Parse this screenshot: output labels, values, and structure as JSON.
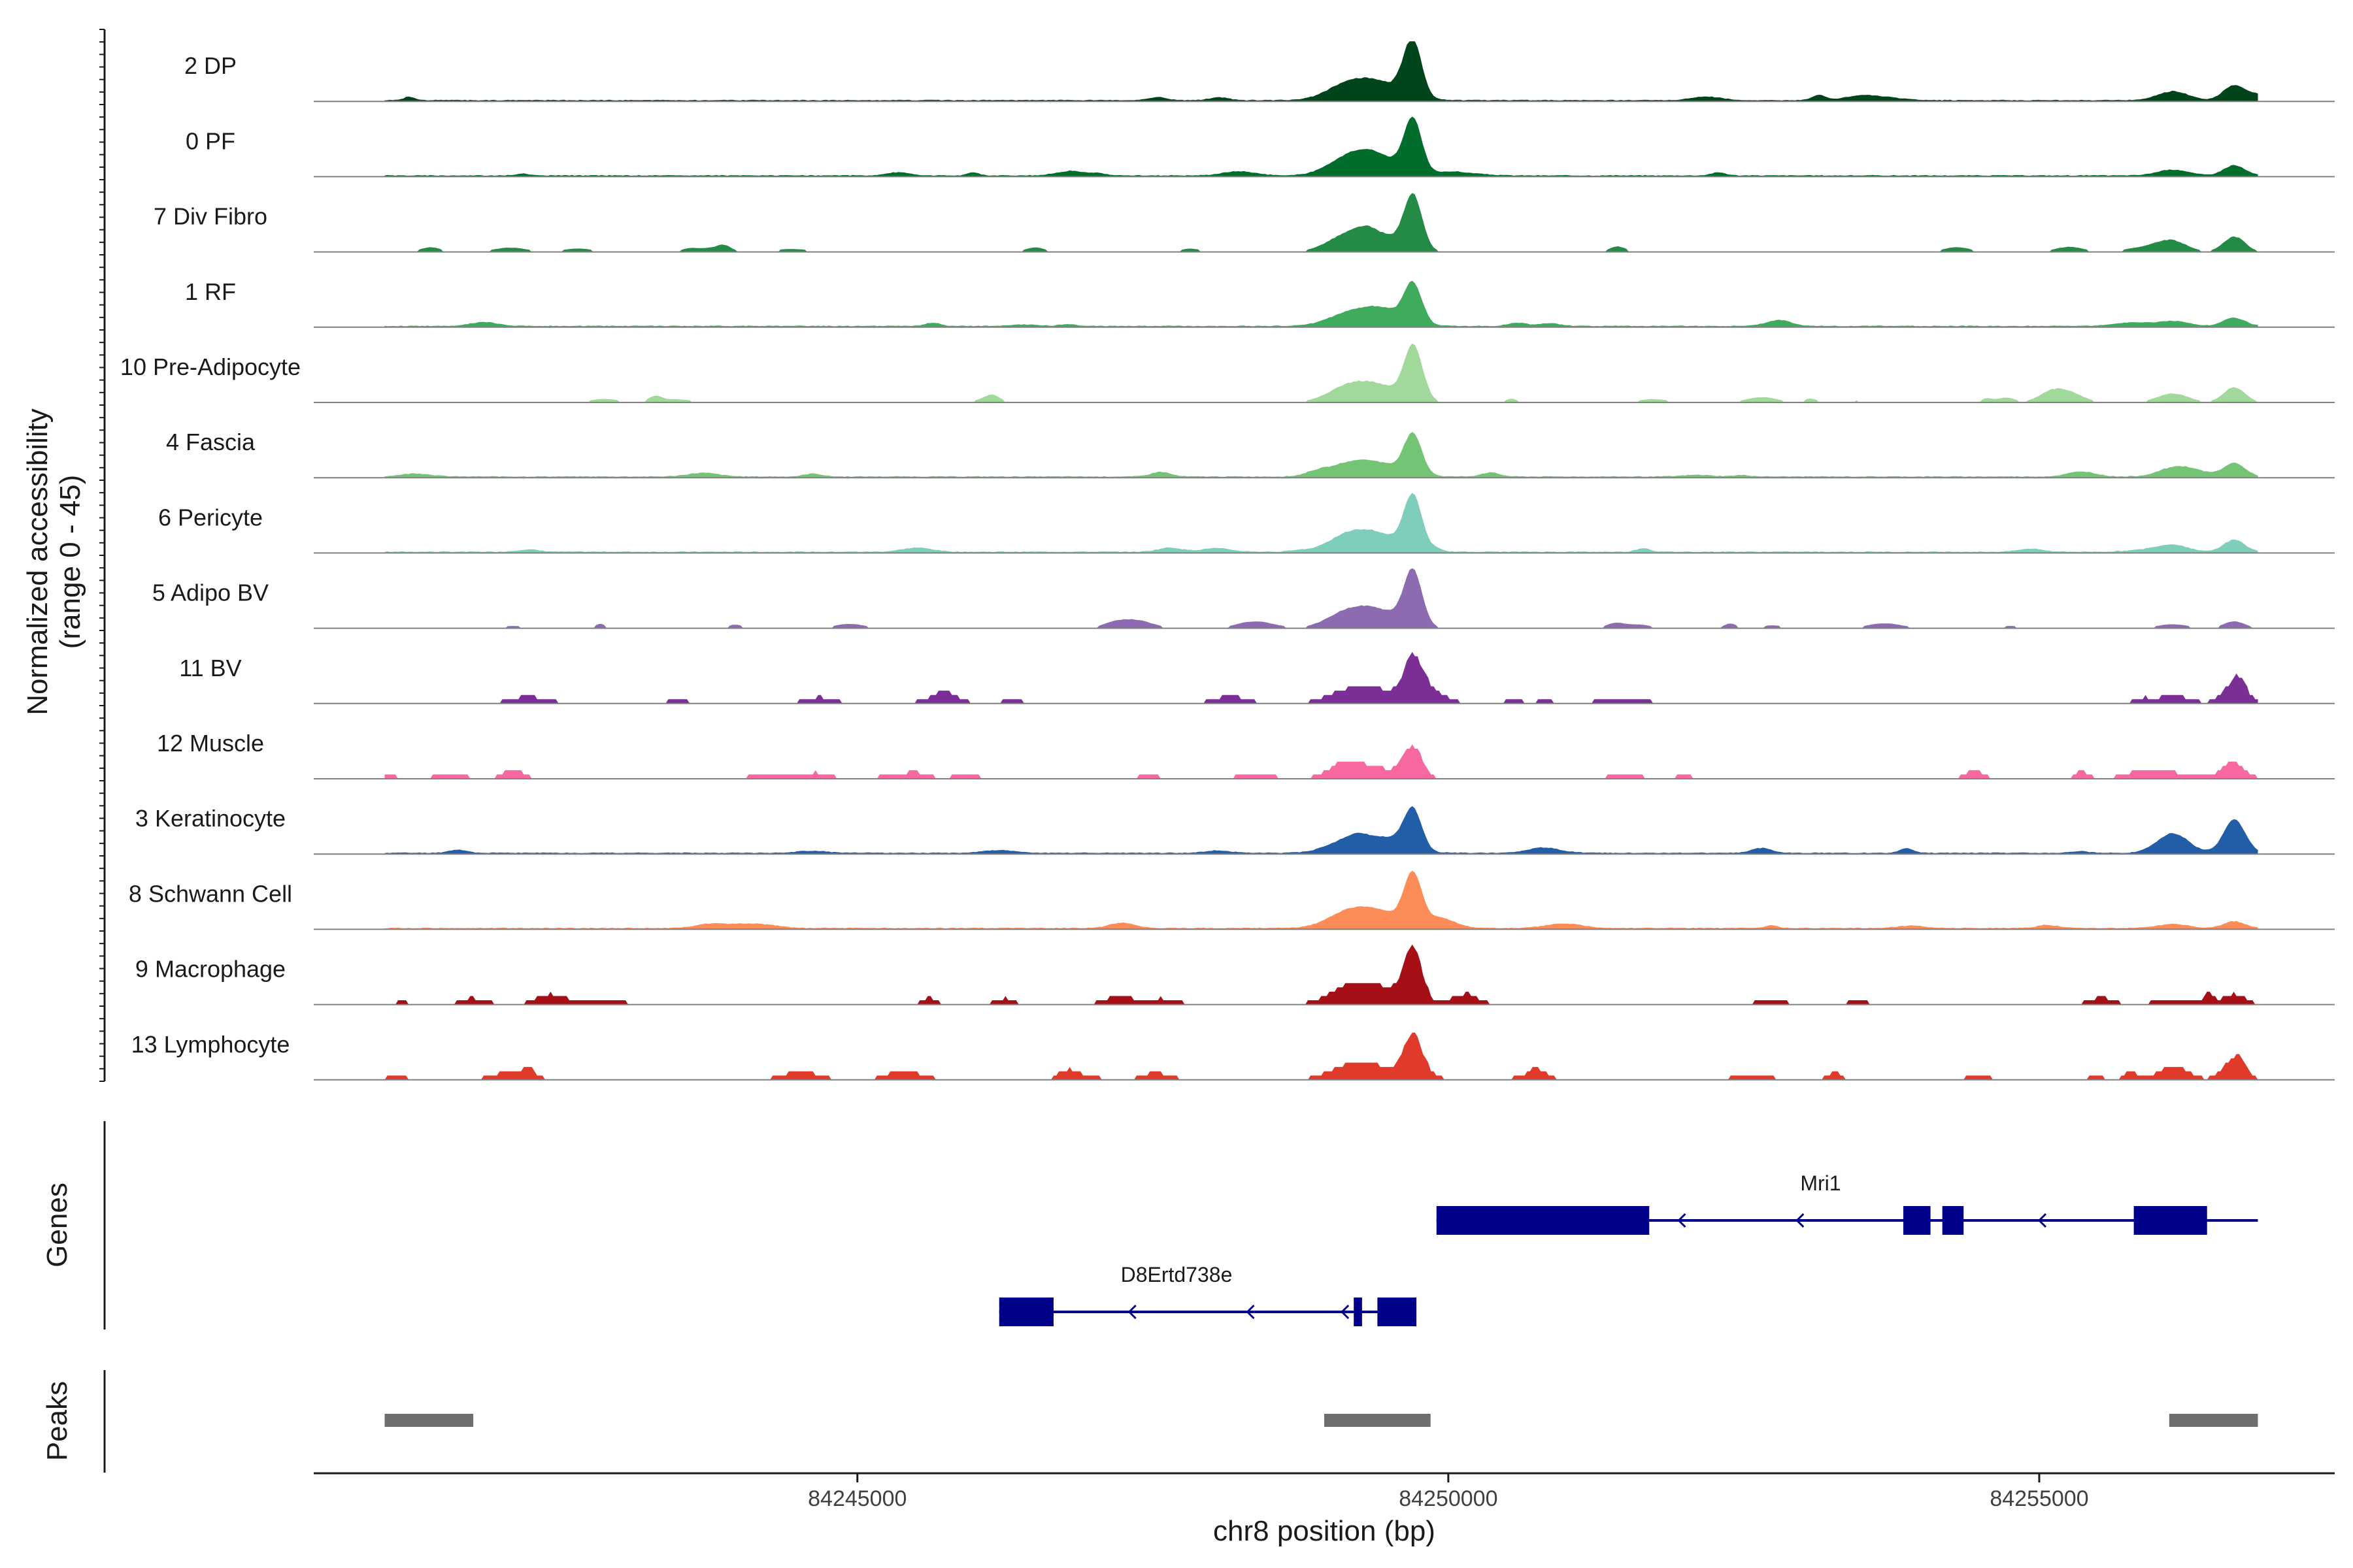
{
  "chart_data": {
    "type": "area",
    "region": {
      "chrom": "chr8",
      "start": 84241000,
      "end": 84256850
    },
    "xlim": [
      84240400,
      84257500
    ],
    "xlabel": "chr8 position (bp)",
    "x_ticks": [
      {
        "value": 84245000,
        "label": "84245000"
      },
      {
        "value": 84250000,
        "label": "84250000"
      },
      {
        "value": 84255000,
        "label": "84255000"
      }
    ],
    "accessibility_axis_label": [
      "Normalized accessibility",
      "(range 0 - 45)"
    ],
    "ylim": [
      0,
      45
    ],
    "genes_label": "Genes",
    "peaks_label": "Peaks",
    "tracks": [
      {
        "name": "2 DP",
        "color": "#00441b",
        "base": 2,
        "peak_scale": 1.0,
        "end_scale": 0.45,
        "noise": 0.35,
        "style": "continuous"
      },
      {
        "name": "0 PF",
        "color": "#006d2c",
        "base": 2,
        "peak_scale": 1.0,
        "end_scale": 0.3,
        "noise": 0.3,
        "style": "continuous"
      },
      {
        "name": "7 Div Fibro",
        "color": "#238b45",
        "base": 1,
        "peak_scale": 1.0,
        "end_scale": 0.45,
        "noise": 0.5,
        "style": "sparse"
      },
      {
        "name": "1 RF",
        "color": "#41ab5d",
        "base": 1,
        "peak_scale": 0.75,
        "end_scale": 0.25,
        "noise": 0.3,
        "style": "continuous"
      },
      {
        "name": "10 Pre-Adipocyte",
        "color": "#a1d99b",
        "base": 1,
        "peak_scale": 0.95,
        "end_scale": 0.45,
        "noise": 0.5,
        "style": "sparse"
      },
      {
        "name": "4 Fascia",
        "color": "#74c476",
        "base": 2,
        "peak_scale": 0.75,
        "end_scale": 0.4,
        "noise": 0.3,
        "style": "continuous"
      },
      {
        "name": "6 Pericyte",
        "color": "#7fcdbb",
        "base": 1,
        "peak_scale": 1.0,
        "end_scale": 0.35,
        "noise": 0.35,
        "style": "continuous"
      },
      {
        "name": "5 Adipo BV",
        "color": "#8c6bb1",
        "base": 1,
        "peak_scale": 1.0,
        "end_scale": 0.2,
        "noise": 0.4,
        "style": "sparse"
      },
      {
        "name": "11 BV",
        "color": "#7a2e96",
        "base": 1,
        "peak_scale": 0.75,
        "end_scale": 0.45,
        "noise": 0.7,
        "style": "blocky"
      },
      {
        "name": "12 Muscle",
        "color": "#f768a1",
        "base": 1,
        "peak_scale": 0.55,
        "end_scale": 0.3,
        "noise": 0.7,
        "style": "blocky"
      },
      {
        "name": "3 Keratinocyte",
        "color": "#225ea8",
        "base": 2,
        "peak_scale": 0.75,
        "end_scale": 1.0,
        "noise": 0.3,
        "style": "continuous"
      },
      {
        "name": "8 Schwann Cell",
        "color": "#fc8d59",
        "base": 1,
        "peak_scale": 0.95,
        "end_scale": 0.2,
        "noise": 0.4,
        "style": "continuous"
      },
      {
        "name": "9 Macrophage",
        "color": "#a50f15",
        "base": 1,
        "peak_scale": 1.0,
        "end_scale": 0.3,
        "noise": 0.7,
        "style": "blocky"
      },
      {
        "name": "13 Lymphocyte",
        "color": "#e03a2a",
        "base": 1,
        "peak_scale": 0.75,
        "end_scale": 0.65,
        "noise": 0.7,
        "style": "blocky"
      }
    ],
    "genes": [
      {
        "name": "Mri1",
        "strand": "-",
        "color": "#00008b",
        "start": 84249900,
        "end": 84256850,
        "exons": [
          [
            84249900,
            84251700
          ],
          [
            84253850,
            84254080
          ],
          [
            84254180,
            84254360
          ],
          [
            84255800,
            84256420
          ]
        ],
        "arrows": [
          84251950,
          84252950,
          84255000
        ]
      },
      {
        "name": "D8Ertd738e",
        "strand": "-",
        "color": "#00008b",
        "start": 84246200,
        "end": 84249730,
        "exons": [
          [
            84246200,
            84246660
          ],
          [
            84249200,
            84249270
          ],
          [
            84249400,
            84249730
          ]
        ],
        "arrows": [
          84247300,
          84248300,
          84249100
        ]
      }
    ],
    "peaks": [
      {
        "start": 84241000,
        "end": 84241750
      },
      {
        "start": 84248950,
        "end": 84249850
      },
      {
        "start": 84256100,
        "end": 84256850
      }
    ],
    "peaks_color": "#6e6e6e"
  }
}
